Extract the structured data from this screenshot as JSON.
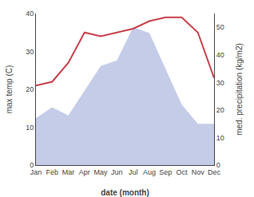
{
  "chart_data": {
    "type": "line",
    "categories": [
      "Jan",
      "Feb",
      "Mar",
      "Apr",
      "May",
      "Jun",
      "Jul",
      "Aug",
      "Sep",
      "Oct",
      "Nov",
      "Dec"
    ],
    "xlabel": "date (month)",
    "ylabel": "max temp (C)",
    "y2label": "med. precipitation (kg/m2)",
    "ylim": [
      0,
      40
    ],
    "yticks": [
      0,
      10,
      20,
      30,
      40
    ],
    "y2lim": [
      0,
      55
    ],
    "y2ticks": [
      0,
      10,
      20,
      30,
      40,
      50
    ],
    "grid": false,
    "series": [
      {
        "type": "area",
        "axis": "y2",
        "color": "#c5cce8",
        "values": [
          17,
          21,
          18,
          27,
          36,
          38,
          50,
          48,
          35,
          22,
          15,
          15
        ]
      },
      {
        "type": "line",
        "color": "#c8414b",
        "values": [
          21,
          22,
          27,
          35,
          34,
          35,
          36,
          38,
          39,
          39,
          35,
          23
        ]
      }
    ]
  }
}
